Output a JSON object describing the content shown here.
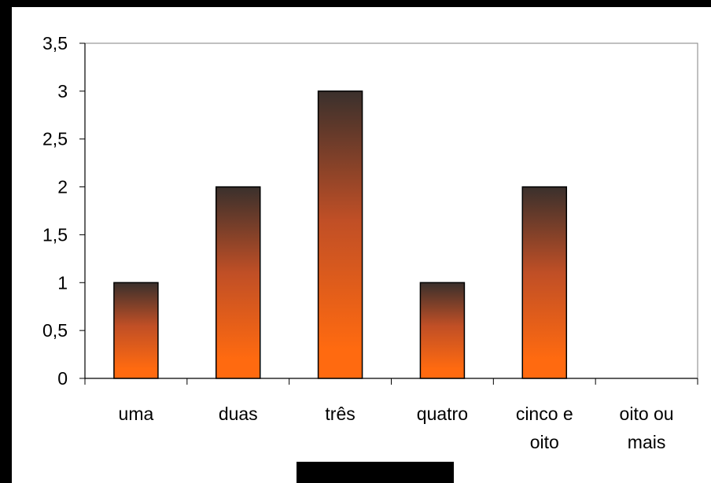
{
  "chart_data": {
    "type": "bar",
    "categories": [
      [
        "uma"
      ],
      [
        "duas"
      ],
      [
        "três"
      ],
      [
        "quatro"
      ],
      [
        "cinco e",
        "oito"
      ],
      [
        "oito ou",
        "mais"
      ]
    ],
    "values": [
      1,
      2,
      3,
      1,
      2,
      0
    ],
    "yticks": [
      "0",
      "0,5",
      "1",
      "1,5",
      "2",
      "2,5",
      "3",
      "3,5"
    ],
    "ylim": [
      0,
      3.5
    ],
    "title": "",
    "xlabel": "",
    "ylabel": "",
    "grid": false,
    "bar_gradient": {
      "top": "#3a302c",
      "mid": "#c04f26",
      "bottom": "#ff6a10"
    }
  }
}
